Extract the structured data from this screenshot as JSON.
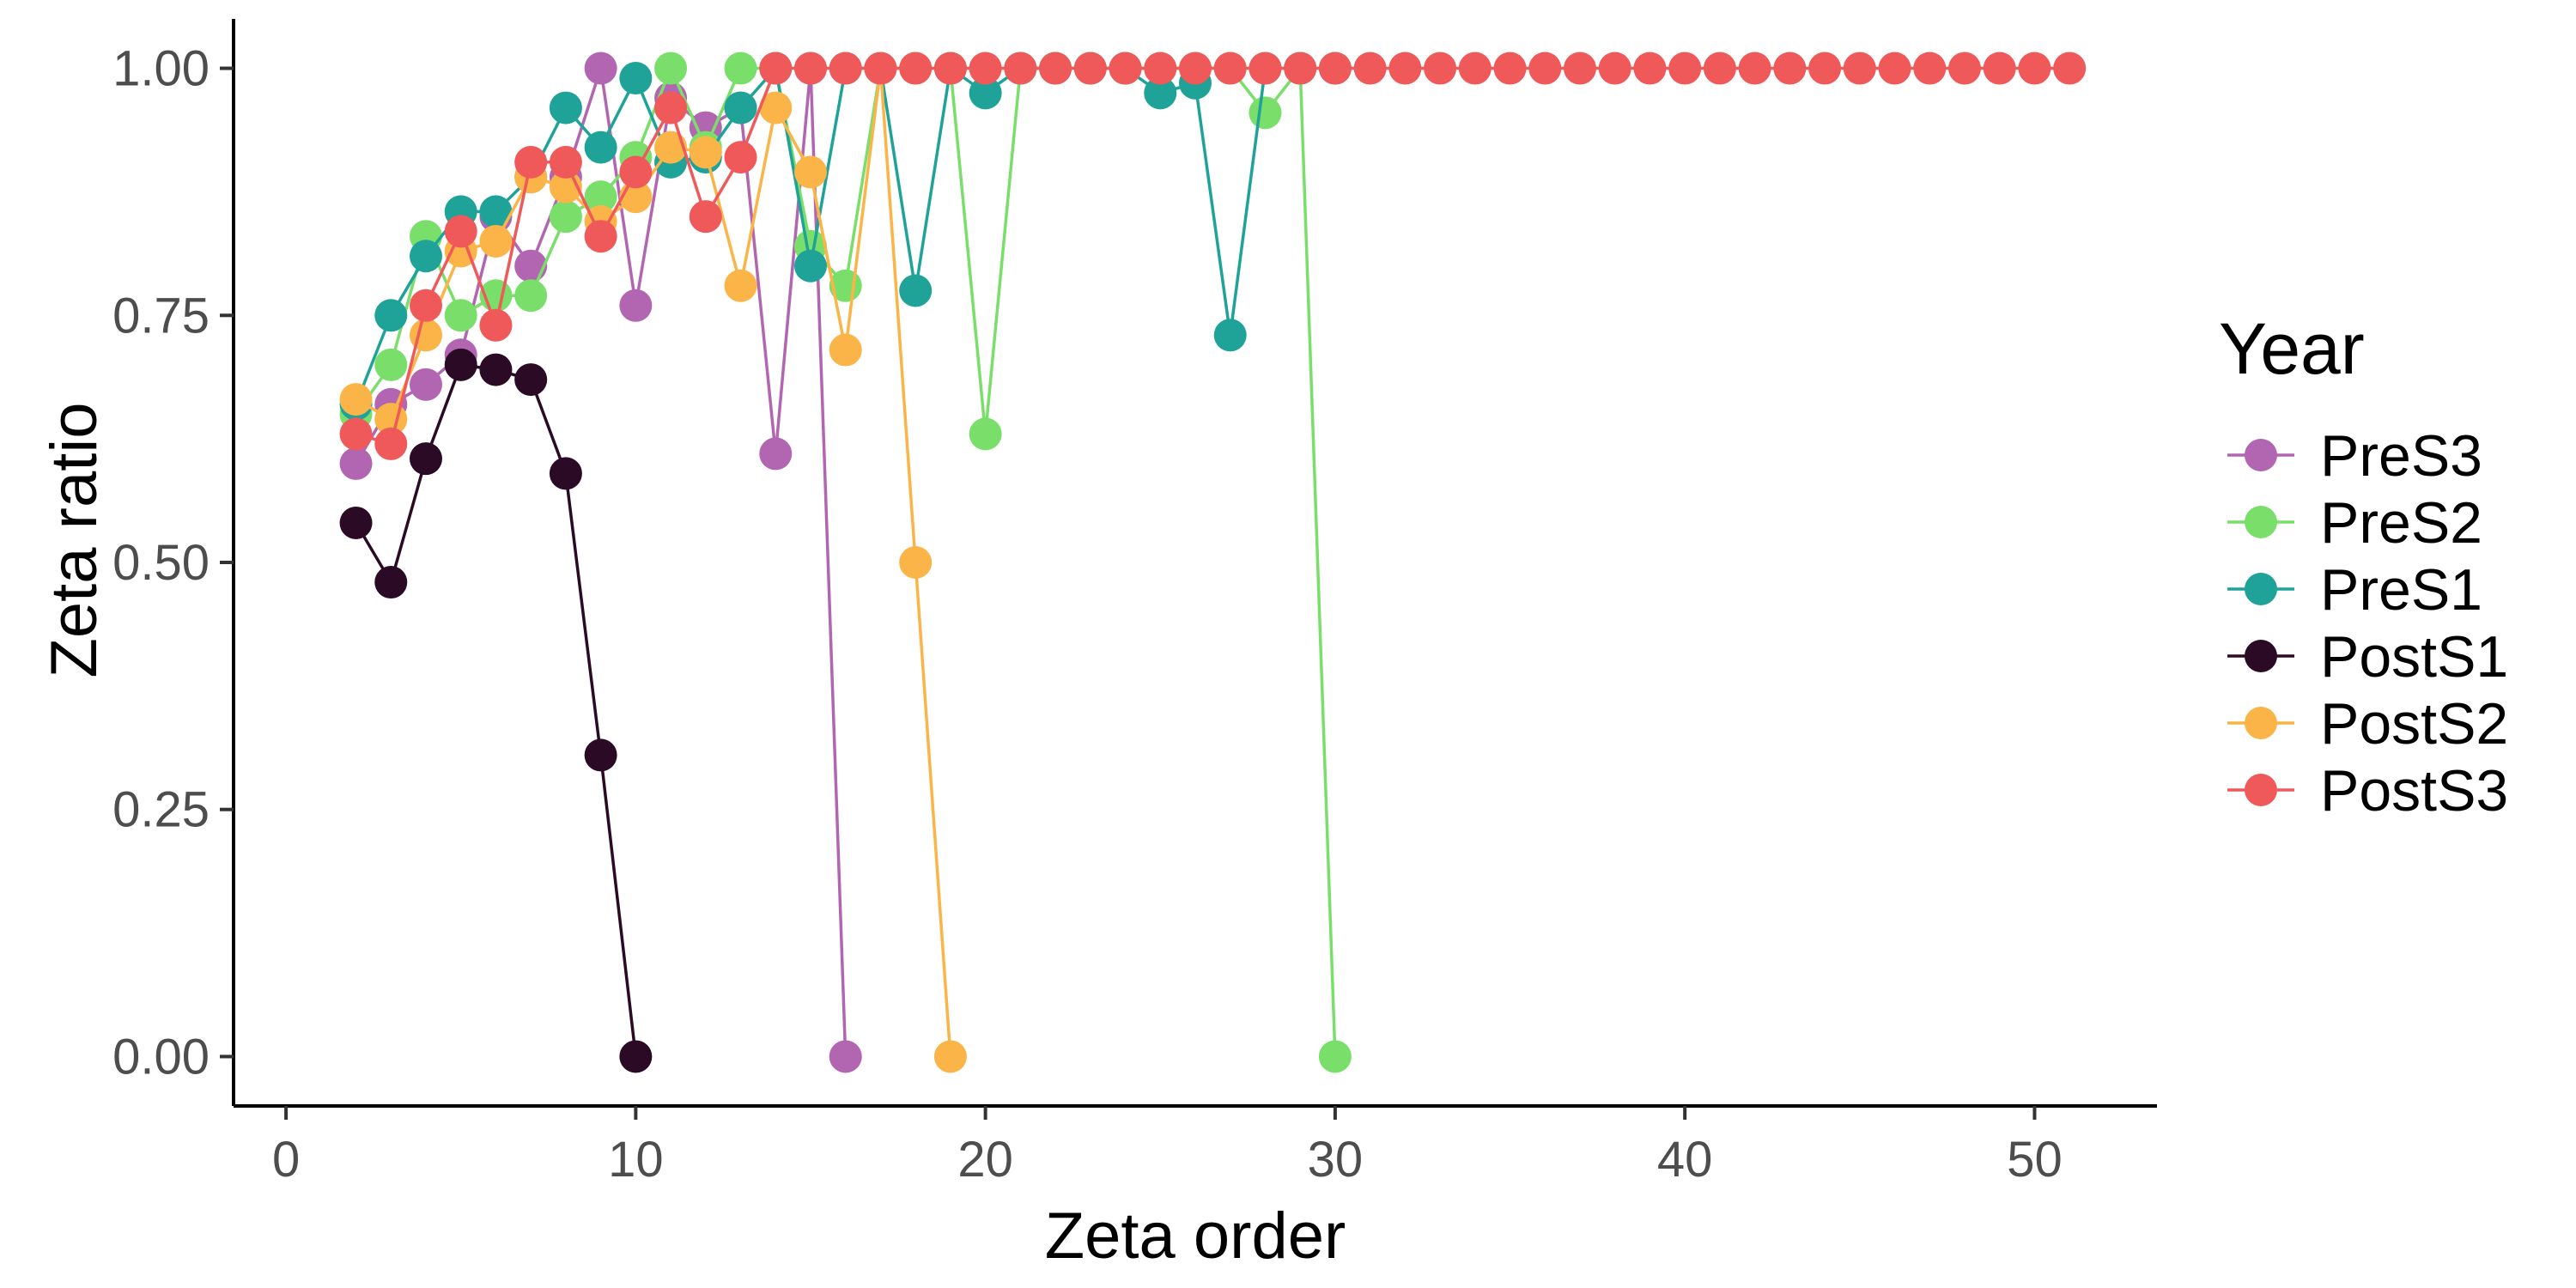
{
  "chart_data": {
    "type": "line",
    "title": "",
    "xlabel": "Zeta order",
    "ylabel": "Zeta ratio",
    "xlim": [
      -1.5,
      53.5
    ],
    "ylim": [
      -0.05,
      1.05
    ],
    "xticks": [
      0,
      10,
      20,
      30,
      40,
      50
    ],
    "xtick_labels": [
      "0",
      "10",
      "20",
      "30",
      "40",
      "50"
    ],
    "yticks": [
      0,
      0.25,
      0.5,
      0.75,
      1
    ],
    "ytick_labels": [
      "0.00",
      "0.25",
      "0.50",
      "0.75",
      "1.00"
    ],
    "grid": false,
    "legend": {
      "title": "Year",
      "position": "right"
    },
    "series": [
      {
        "name": "PreS3",
        "color": "#B266B2",
        "x": [
          2,
          3,
          4,
          5,
          6,
          7,
          8,
          9,
          10,
          11,
          12,
          13,
          14,
          15,
          16
        ],
        "y": [
          0.6,
          0.66,
          0.68,
          0.71,
          0.85,
          0.8,
          0.89,
          1.0,
          0.76,
          0.97,
          0.94,
          0.96,
          0.61,
          1.0,
          0.0
        ]
      },
      {
        "name": "PreS2",
        "color": "#7ADF6A",
        "x": [
          2,
          3,
          4,
          5,
          6,
          7,
          8,
          9,
          10,
          11,
          12,
          13,
          14,
          15,
          16,
          17,
          18,
          19,
          20,
          21,
          22,
          23,
          24,
          25,
          26,
          27,
          28,
          29,
          30
        ],
        "y": [
          0.65,
          0.7,
          0.83,
          0.75,
          0.77,
          0.77,
          0.85,
          0.87,
          0.91,
          1.0,
          0.92,
          1.0,
          1.0,
          0.82,
          0.78,
          1.0,
          1.0,
          1.0,
          0.63,
          1.0,
          1.0,
          1.0,
          1.0,
          1.0,
          1.0,
          1.0,
          0.955,
          1.0,
          0.0
        ]
      },
      {
        "name": "PreS1",
        "color": "#1FA398",
        "x": [
          2,
          3,
          4,
          5,
          6,
          7,
          8,
          9,
          10,
          11,
          12,
          13,
          14,
          15,
          16,
          17,
          18,
          19,
          20,
          21,
          22,
          23,
          24,
          25,
          26,
          27,
          28,
          29,
          30
        ],
        "y": [
          0.66,
          0.75,
          0.81,
          0.855,
          0.855,
          0.89,
          0.96,
          0.92,
          0.99,
          0.905,
          0.91,
          0.96,
          1.0,
          0.8,
          1.0,
          1.0,
          0.775,
          1.0,
          0.975,
          1.0,
          1.0,
          1.0,
          1.0,
          0.975,
          0.985,
          0.73,
          1.0,
          1.0,
          1.0
        ]
      },
      {
        "name": "PostS1",
        "color": "#2A0A24",
        "x": [
          2,
          3,
          4,
          5,
          6,
          7,
          8,
          9,
          10
        ],
        "y": [
          0.54,
          0.48,
          0.605,
          0.7,
          0.695,
          0.685,
          0.59,
          0.305,
          0.0
        ]
      },
      {
        "name": "PostS2",
        "color": "#FBB448",
        "x": [
          2,
          3,
          4,
          5,
          6,
          7,
          8,
          9,
          10,
          11,
          12,
          13,
          14,
          15,
          16,
          17,
          18,
          19
        ],
        "y": [
          0.665,
          0.645,
          0.73,
          0.815,
          0.825,
          0.89,
          0.88,
          0.845,
          0.87,
          0.92,
          0.915,
          0.78,
          0.96,
          0.895,
          0.715,
          1.0,
          0.5,
          0.0
        ]
      },
      {
        "name": "PostS3",
        "color": "#F0595A",
        "x": [
          2,
          3,
          4,
          5,
          6,
          7,
          8,
          9,
          10,
          11,
          12,
          13,
          14,
          15,
          16,
          17,
          18,
          19,
          20,
          21,
          22,
          23,
          24,
          25,
          26,
          27,
          28,
          29,
          30,
          31,
          32,
          33,
          34,
          35,
          36,
          37,
          38,
          39,
          40,
          41,
          42,
          43,
          44,
          45,
          46,
          47,
          48,
          49,
          50,
          51
        ],
        "y": [
          0.63,
          0.62,
          0.76,
          0.835,
          0.74,
          0.905,
          0.905,
          0.83,
          0.895,
          0.96,
          0.85,
          0.91,
          1.0,
          1.0,
          1.0,
          1.0,
          1.0,
          1.0,
          1.0,
          1.0,
          1.0,
          1.0,
          1.0,
          1.0,
          1.0,
          1.0,
          1.0,
          1.0,
          1.0,
          1.0,
          1.0,
          1.0,
          1.0,
          1.0,
          1.0,
          1.0,
          1.0,
          1.0,
          1.0,
          1.0,
          1.0,
          1.0,
          1.0,
          1.0,
          1.0,
          1.0,
          1.0,
          1.0,
          1.0,
          1.0
        ]
      }
    ]
  }
}
